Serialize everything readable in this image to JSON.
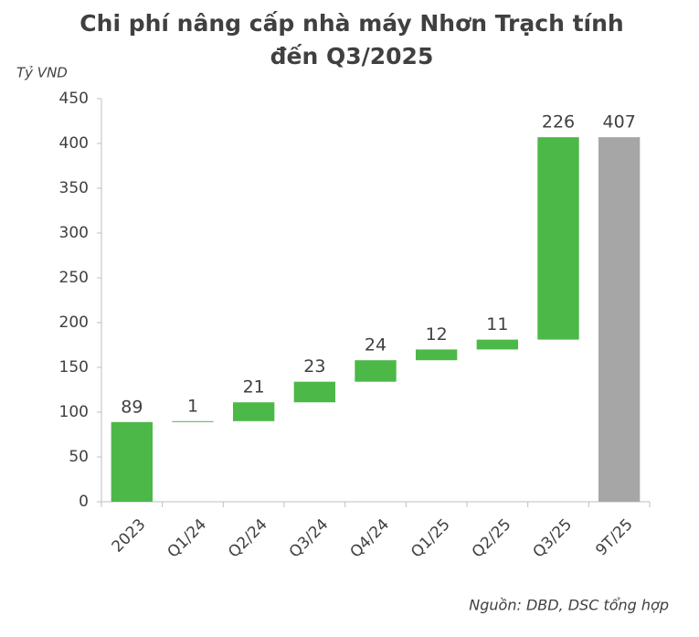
{
  "chart_data": {
    "type": "waterfall",
    "title": "Chi phí nâng cấp nhà máy Nhơn Trạch tính đến Q3/2025",
    "y_label": "Tỷ VND",
    "source": "Nguồn: DBD, DSC tổng hợp",
    "categories": [
      "2023",
      "Q1/24",
      "Q2/24",
      "Q3/24",
      "Q4/24",
      "Q1/25",
      "Q2/25",
      "Q3/25",
      "9T/25"
    ],
    "values": [
      89,
      1,
      21,
      23,
      24,
      12,
      11,
      226,
      407
    ],
    "is_total": [
      false,
      false,
      false,
      false,
      false,
      false,
      false,
      false,
      true
    ],
    "color": "#4cb848",
    "total_color": "#a6a6a6",
    "ylim": [
      0,
      450
    ],
    "yticks": [
      0,
      50,
      100,
      150,
      200,
      250,
      300,
      350,
      400,
      450
    ]
  }
}
